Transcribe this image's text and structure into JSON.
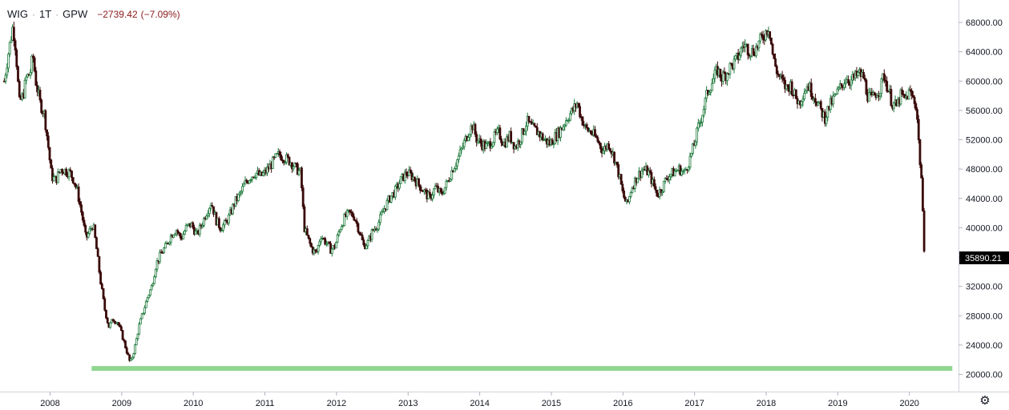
{
  "legend": {
    "symbol": "WIG",
    "interval": "1T",
    "exchange": "GPW",
    "separator": "·",
    "change": "−2739.42",
    "change_pct": "(−7.09%)",
    "change_color": "#8b1a1a"
  },
  "settings_icon": "gear-icon",
  "chart_data": {
    "type": "candlestick",
    "title": "",
    "xlabel": "",
    "ylabel": "",
    "ylim": [
      19000,
      69000
    ],
    "x_range": [
      2007.35,
      2020.78
    ],
    "grid": false,
    "up_color": "#1e7a3c",
    "down_color": "#3a0a0a",
    "y_ticks": [
      20000,
      24000,
      28000,
      32000,
      36000,
      40000,
      44000,
      48000,
      52000,
      56000,
      60000,
      64000,
      68000
    ],
    "y_tick_labels": [
      "20000.00",
      "24000.00",
      "28000.00",
      "32000.00",
      "36000.00",
      "40000.00",
      "44000.00",
      "48000.00",
      "52000.00",
      "56000.00",
      "60000.00",
      "64000.00",
      "68000.00"
    ],
    "x_ticks": [
      2008,
      2009,
      2010,
      2011,
      2012,
      2013,
      2014,
      2015,
      2016,
      2017,
      2018,
      2019,
      2020
    ],
    "x_tick_labels": [
      "2008",
      "2009",
      "2010",
      "2011",
      "2012",
      "2013",
      "2014",
      "2015",
      "2016",
      "2017",
      "2018",
      "2019",
      "2020"
    ],
    "last_value": 35890.21,
    "last_value_label": "35890.21",
    "support_line": {
      "value": 20800,
      "x_start": 2008.58,
      "x_end": 2020.6,
      "color": "#8fd68f"
    },
    "series": [
      {
        "points": [
          [
            2007.36,
            60000
          ],
          [
            2007.42,
            64000
          ],
          [
            2007.48,
            67500
          ],
          [
            2007.52,
            64500
          ],
          [
            2007.57,
            57000
          ],
          [
            2007.62,
            58000
          ],
          [
            2007.67,
            60500
          ],
          [
            2007.72,
            61000
          ],
          [
            2007.76,
            63500
          ],
          [
            2007.8,
            60000
          ],
          [
            2007.86,
            57000
          ],
          [
            2007.92,
            55500
          ],
          [
            2007.97,
            51500
          ],
          [
            2008.02,
            47000
          ],
          [
            2008.08,
            46500
          ],
          [
            2008.15,
            48000
          ],
          [
            2008.21,
            47800
          ],
          [
            2008.28,
            47500
          ],
          [
            2008.33,
            46500
          ],
          [
            2008.38,
            45000
          ],
          [
            2008.45,
            41500
          ],
          [
            2008.5,
            38500
          ],
          [
            2008.55,
            39500
          ],
          [
            2008.6,
            40500
          ],
          [
            2008.65,
            37000
          ],
          [
            2008.7,
            33000
          ],
          [
            2008.76,
            29000
          ],
          [
            2008.82,
            26500
          ],
          [
            2008.88,
            27500
          ],
          [
            2008.94,
            27200
          ],
          [
            2009.0,
            25500
          ],
          [
            2009.06,
            23500
          ],
          [
            2009.12,
            21500
          ],
          [
            2009.18,
            23500
          ],
          [
            2009.24,
            26500
          ],
          [
            2009.3,
            28500
          ],
          [
            2009.36,
            30500
          ],
          [
            2009.42,
            32000
          ],
          [
            2009.48,
            35000
          ],
          [
            2009.55,
            36500
          ],
          [
            2009.62,
            37500
          ],
          [
            2009.69,
            39000
          ],
          [
            2009.76,
            39800
          ],
          [
            2009.83,
            38500
          ],
          [
            2009.9,
            40000
          ],
          [
            2009.97,
            40500
          ],
          [
            2010.05,
            39000
          ],
          [
            2010.12,
            40500
          ],
          [
            2010.18,
            42000
          ],
          [
            2010.25,
            43500
          ],
          [
            2010.32,
            41000
          ],
          [
            2010.38,
            40000
          ],
          [
            2010.44,
            40500
          ],
          [
            2010.5,
            41500
          ],
          [
            2010.58,
            43500
          ],
          [
            2010.65,
            44500
          ],
          [
            2010.72,
            46000
          ],
          [
            2010.8,
            47000
          ],
          [
            2010.87,
            47500
          ],
          [
            2010.94,
            47000
          ],
          [
            2011.0,
            47500
          ],
          [
            2011.08,
            48500
          ],
          [
            2011.15,
            49500
          ],
          [
            2011.2,
            50000
          ],
          [
            2011.28,
            49500
          ],
          [
            2011.36,
            49000
          ],
          [
            2011.44,
            48000
          ],
          [
            2011.5,
            47500
          ],
          [
            2011.55,
            40000
          ],
          [
            2011.6,
            38500
          ],
          [
            2011.66,
            37000
          ],
          [
            2011.72,
            36500
          ],
          [
            2011.78,
            39000
          ],
          [
            2011.85,
            38000
          ],
          [
            2011.92,
            37000
          ],
          [
            2011.98,
            37500
          ],
          [
            2012.05,
            40000
          ],
          [
            2012.12,
            41500
          ],
          [
            2012.18,
            42000
          ],
          [
            2012.25,
            41500
          ],
          [
            2012.32,
            39500
          ],
          [
            2012.38,
            37500
          ],
          [
            2012.44,
            38000
          ],
          [
            2012.5,
            39500
          ],
          [
            2012.58,
            40500
          ],
          [
            2012.66,
            42500
          ],
          [
            2012.74,
            44000
          ],
          [
            2012.82,
            45000
          ],
          [
            2012.9,
            46500
          ],
          [
            2012.98,
            47500
          ],
          [
            2013.06,
            47000
          ],
          [
            2013.14,
            46000
          ],
          [
            2013.22,
            45000
          ],
          [
            2013.3,
            44000
          ],
          [
            2013.38,
            45500
          ],
          [
            2013.46,
            44500
          ],
          [
            2013.54,
            46000
          ],
          [
            2013.62,
            48000
          ],
          [
            2013.7,
            49500
          ],
          [
            2013.78,
            51500
          ],
          [
            2013.84,
            53000
          ],
          [
            2013.9,
            54000
          ],
          [
            2013.96,
            52000
          ],
          [
            2014.02,
            51500
          ],
          [
            2014.1,
            51000
          ],
          [
            2014.18,
            52000
          ],
          [
            2014.26,
            53000
          ],
          [
            2014.34,
            51500
          ],
          [
            2014.42,
            52500
          ],
          [
            2014.5,
            51000
          ],
          [
            2014.58,
            52500
          ],
          [
            2014.66,
            54500
          ],
          [
            2014.74,
            53500
          ],
          [
            2014.82,
            53000
          ],
          [
            2014.9,
            52000
          ],
          [
            2014.98,
            51500
          ],
          [
            2015.06,
            52500
          ],
          [
            2015.14,
            53500
          ],
          [
            2015.22,
            55000
          ],
          [
            2015.3,
            56000
          ],
          [
            2015.36,
            57000
          ],
          [
            2015.42,
            55000
          ],
          [
            2015.48,
            53500
          ],
          [
            2015.56,
            53000
          ],
          [
            2015.64,
            52000
          ],
          [
            2015.72,
            50500
          ],
          [
            2015.8,
            51500
          ],
          [
            2015.88,
            49500
          ],
          [
            2015.95,
            47000
          ],
          [
            2016.0,
            44500
          ],
          [
            2016.06,
            43000
          ],
          [
            2016.12,
            45500
          ],
          [
            2016.2,
            47000
          ],
          [
            2016.28,
            48000
          ],
          [
            2016.36,
            47500
          ],
          [
            2016.42,
            46000
          ],
          [
            2016.48,
            44500
          ],
          [
            2016.55,
            45500
          ],
          [
            2016.62,
            47000
          ],
          [
            2016.7,
            47500
          ],
          [
            2016.78,
            48000
          ],
          [
            2016.86,
            47500
          ],
          [
            2016.94,
            49500
          ],
          [
            2017.0,
            51500
          ],
          [
            2017.06,
            54000
          ],
          [
            2017.12,
            56000
          ],
          [
            2017.18,
            58500
          ],
          [
            2017.25,
            60000
          ],
          [
            2017.32,
            61500
          ],
          [
            2017.38,
            60500
          ],
          [
            2017.44,
            61000
          ],
          [
            2017.5,
            62000
          ],
          [
            2017.56,
            62500
          ],
          [
            2017.62,
            63500
          ],
          [
            2017.68,
            65000
          ],
          [
            2017.74,
            64500
          ],
          [
            2017.8,
            64000
          ],
          [
            2017.86,
            64500
          ],
          [
            2017.92,
            65500
          ],
          [
            2017.98,
            66500
          ],
          [
            2018.04,
            67500
          ],
          [
            2018.1,
            63000
          ],
          [
            2018.16,
            61000
          ],
          [
            2018.22,
            60000
          ],
          [
            2018.28,
            59000
          ],
          [
            2018.34,
            59500
          ],
          [
            2018.4,
            58000
          ],
          [
            2018.46,
            57000
          ],
          [
            2018.52,
            58500
          ],
          [
            2018.58,
            59500
          ],
          [
            2018.64,
            58500
          ],
          [
            2018.7,
            57500
          ],
          [
            2018.76,
            56000
          ],
          [
            2018.82,
            55000
          ],
          [
            2018.88,
            56500
          ],
          [
            2018.94,
            57500
          ],
          [
            2019.0,
            58500
          ],
          [
            2019.06,
            59500
          ],
          [
            2019.12,
            60500
          ],
          [
            2019.18,
            60000
          ],
          [
            2019.24,
            60500
          ],
          [
            2019.3,
            61000
          ],
          [
            2019.36,
            60500
          ],
          [
            2019.42,
            58000
          ],
          [
            2019.48,
            57500
          ],
          [
            2019.54,
            58500
          ],
          [
            2019.6,
            59000
          ],
          [
            2019.64,
            61000
          ],
          [
            2019.7,
            59000
          ],
          [
            2019.76,
            57000
          ],
          [
            2019.82,
            56500
          ],
          [
            2019.88,
            58000
          ],
          [
            2019.94,
            57500
          ],
          [
            2020.0,
            58500
          ],
          [
            2020.06,
            57500
          ],
          [
            2020.1,
            56500
          ],
          [
            2020.14,
            50000
          ],
          [
            2020.17,
            46500
          ],
          [
            2020.2,
            38000
          ],
          [
            2020.22,
            35890
          ]
        ]
      }
    ]
  }
}
